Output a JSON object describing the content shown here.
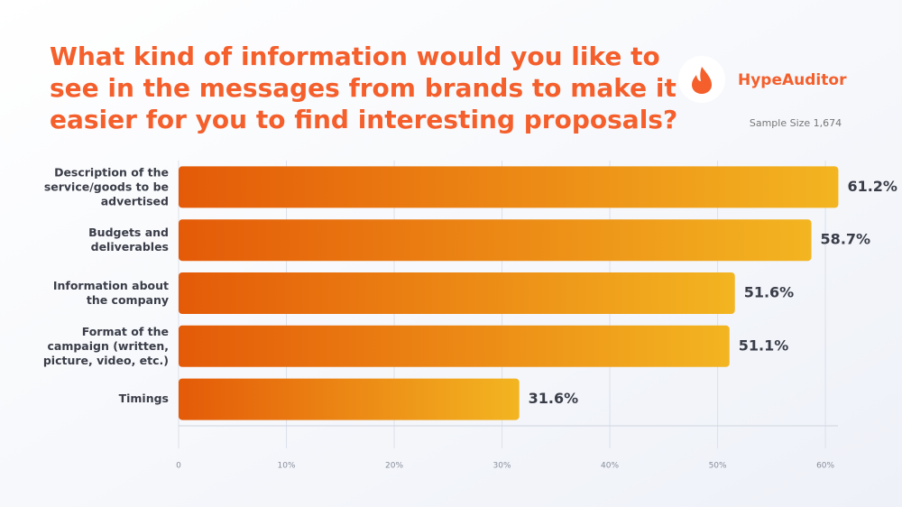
{
  "chart_data": {
    "type": "hbar",
    "title": "What kind of information would you like to\nsee in the messages from brands to make it\neasier for you to find interesting proposals?",
    "brand": "HypeAuditor",
    "subtitle": "Sample Size 1,674",
    "categories": [
      "Description of the\nservice/goods to be\nadvertised",
      "Budgets and\ndeliverables",
      "Information about\nthe company",
      "Format of the\ncampaign (written,\npicture, video, etc.)",
      "Timings"
    ],
    "values": [
      61.2,
      58.7,
      51.6,
      51.1,
      31.6
    ],
    "value_labels": [
      "61.2%",
      "58.7%",
      "51.6%",
      "51.1%",
      "31.6%"
    ],
    "color": [
      "#e45a08",
      "#f3b521"
    ],
    "xlim": [
      0,
      62
    ],
    "xticks": [
      0,
      {
        "value": 10,
        "label": "10%"
      },
      {
        "value": 20,
        "label": "20%"
      },
      {
        "value": 30,
        "label": "30%"
      },
      {
        "value": 40,
        "label": "40%"
      },
      {
        "value": 50,
        "label": "50%"
      },
      {
        "value": 60,
        "label": "60%"
      }
    ],
    "grid": true
  }
}
